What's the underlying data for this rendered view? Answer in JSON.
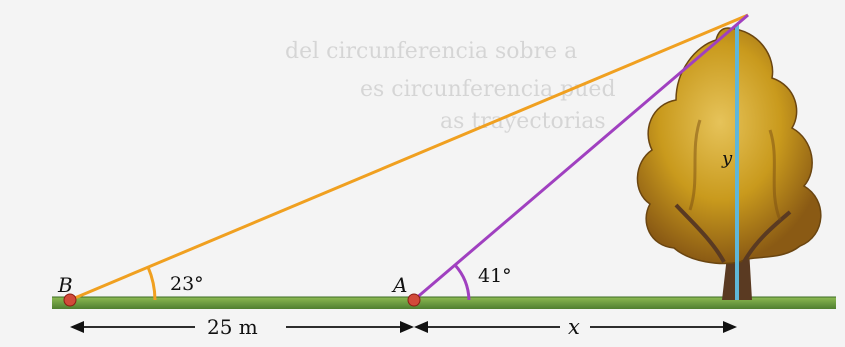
{
  "points": {
    "b": "B",
    "a": "A"
  },
  "angles": {
    "at_b": "23°",
    "at_a": "41°"
  },
  "dimensions": {
    "ba": "25 m",
    "a_tree": "x",
    "height": "y"
  },
  "background_text": {
    "line1": "del circunferencia sobre a",
    "line2": "es circunferencia pued",
    "line3": "as trayectorias"
  },
  "colors": {
    "line_from_b": "#f0a020",
    "line_from_a": "#a040c0",
    "height_line": "#5fb6d8",
    "ground": "#5b8a3a",
    "point": "#d24a3a",
    "foliage": "#c99a1d",
    "trunk": "#5a3a22"
  }
}
